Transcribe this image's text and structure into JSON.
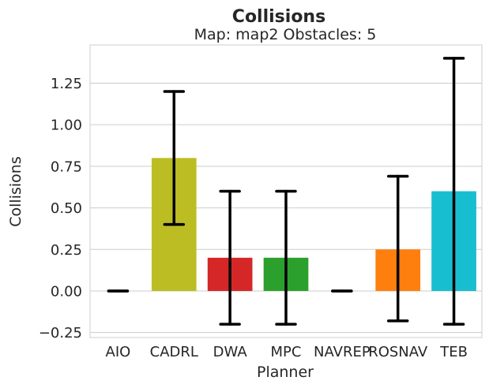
{
  "chart_data": {
    "type": "bar",
    "title": "Collisions",
    "subtitle": "Map: map2 Obstacles: 5",
    "xlabel": "Planner",
    "ylabel": "Collisions",
    "categories": [
      "AIO",
      "CADRL",
      "DWA",
      "MPC",
      "NAVREP",
      "ROSNAV",
      "TEB"
    ],
    "values": [
      0.0,
      0.8,
      0.2,
      0.2,
      0.0,
      0.25,
      0.6
    ],
    "error_low": [
      0.0,
      0.4,
      -0.2,
      -0.2,
      0.0,
      -0.18,
      -0.2
    ],
    "error_high": [
      0.0,
      1.2,
      0.6,
      0.6,
      0.0,
      0.69,
      1.4
    ],
    "colors": [
      "#1f77b4",
      "#bcbd22",
      "#d62728",
      "#2ca02c",
      "#9467bd",
      "#ff7f0e",
      "#17becf"
    ],
    "error_color": "#000000",
    "ylim": [
      -0.28,
      1.48
    ],
    "yticks": [
      -0.25,
      0.0,
      0.25,
      0.5,
      0.75,
      1.0,
      1.25
    ],
    "ytick_labels": [
      "−0.25",
      "0.00",
      "0.25",
      "0.50",
      "0.75",
      "1.00",
      "1.25"
    ],
    "grid": true,
    "grid_axis": "y"
  }
}
